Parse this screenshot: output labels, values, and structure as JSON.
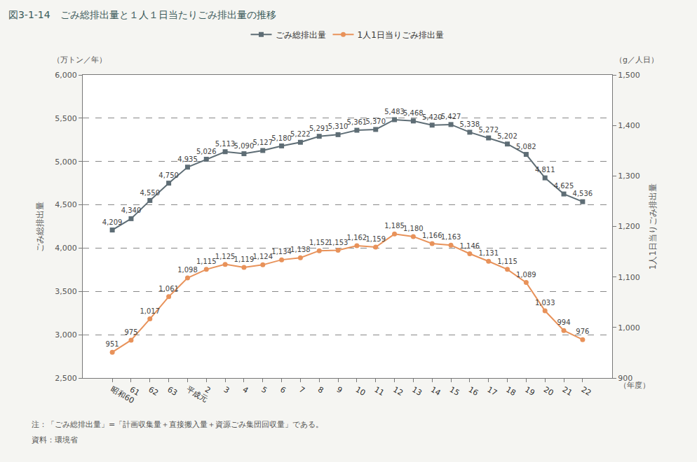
{
  "chart_data": {
    "type": "line",
    "title": "図3-1-14　ごみ総排出量と１人１日当たりごみ排出量の推移",
    "categories": [
      "昭和60",
      "61",
      "62",
      "63",
      "平成元",
      "2",
      "3",
      "4",
      "5",
      "6",
      "7",
      "8",
      "9",
      "10",
      "11",
      "12",
      "13",
      "14",
      "15",
      "16",
      "17",
      "18",
      "19",
      "20",
      "21",
      "22"
    ],
    "series": [
      {
        "name": "ごみ総排出量",
        "color": "#5e6d75",
        "marker": "square",
        "axis": "y",
        "values": [
          4209,
          4340,
          4550,
          4750,
          4935,
          5026,
          5113,
          5090,
          5127,
          5180,
          5222,
          5291,
          5310,
          5361,
          5370,
          5483,
          5468,
          5420,
          5427,
          5338,
          5272,
          5202,
          5082,
          4811,
          4625,
          4536
        ],
        "value_labels": [
          "4,209",
          "4,340",
          "4,550",
          "4,750",
          "4,935",
          "5,026",
          "5,113",
          "5,090",
          "5,127",
          "5,180",
          "5,222",
          "5,291",
          "5,310",
          "5,361",
          "5,370",
          "5,483",
          "5,468",
          "5,420",
          "5,427",
          "5,338",
          "5,272",
          "5,202",
          "5,082",
          "4,811",
          "4,625",
          "4,536"
        ]
      },
      {
        "name": "1人1日当りごみ排出量",
        "color": "#e8925a",
        "marker": "circle",
        "axis": "y2",
        "values": [
          951,
          975,
          1017,
          1061,
          1098,
          1115,
          1125,
          1119,
          1124,
          1134,
          1138,
          1152,
          1153,
          1162,
          1159,
          1185,
          1180,
          1166,
          1163,
          1146,
          1131,
          1115,
          1089,
          1033,
          994,
          976
        ],
        "value_labels": [
          "951",
          "975",
          "1,017",
          "1,061",
          "1,098",
          "1,115",
          "1,125",
          "1,119",
          "1,124",
          "1,134",
          "1,138",
          "1,152",
          "1,153",
          "1,162",
          "1,159",
          "1,185",
          "1,180",
          "1,166",
          "1,163",
          "1,146",
          "1,131",
          "1,115",
          "1,089",
          "1,033",
          "994",
          "976"
        ]
      }
    ],
    "ylim": [
      2500,
      6000
    ],
    "yticks": [
      {
        "value": 2500,
        "label": "2,500"
      },
      {
        "value": 3000,
        "label": "3,000"
      },
      {
        "value": 3500,
        "label": "3,500"
      },
      {
        "value": 4000,
        "label": "4,000"
      },
      {
        "value": 4500,
        "label": "4,500"
      },
      {
        "value": 5000,
        "label": "5,000"
      },
      {
        "value": 5500,
        "label": "5,500"
      },
      {
        "value": 6000,
        "label": "6,000"
      }
    ],
    "y2lim": [
      900,
      1500
    ],
    "y2ticks": [
      900,
      {
        "value": 1000,
        "label": "1,000"
      },
      {
        "value": 1100,
        "label": "1,100"
      },
      {
        "value": 1200,
        "label": "1,200"
      },
      {
        "value": 1300,
        "label": "1,300"
      },
      {
        "value": 1400,
        "label": "1,400"
      },
      {
        "value": 1500,
        "label": "1,500"
      }
    ],
    "ylabel": "ごみ総排出量",
    "y2label": "1人1日当りごみ排出量",
    "yunit": "（万トン／年）",
    "y2unit": "（g／人日）",
    "xunit": "（年度）",
    "notes": [
      "注：「ごみ総排出量」=「計画収集量＋直接搬入量＋資源ごみ集団回収量」である。",
      "資料：環境省"
    ],
    "grid": true,
    "data_labels": true,
    "legend": "top"
  }
}
